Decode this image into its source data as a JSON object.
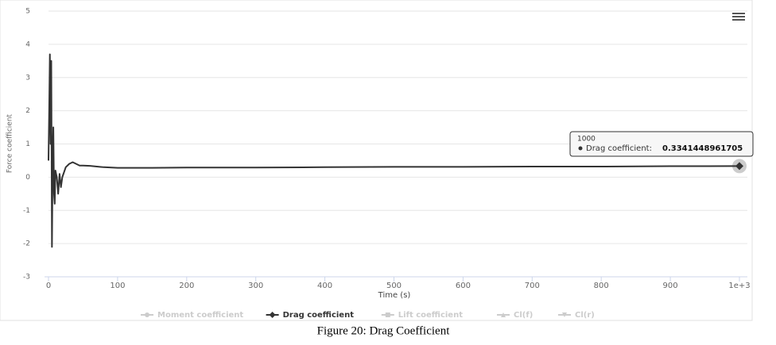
{
  "chart_data": {
    "type": "line",
    "x_label": "Time (s)",
    "y_label": "Force coefficient",
    "caption": "Figure 20: Drag Coefficient",
    "x": [
      0,
      1,
      2,
      3,
      4,
      5,
      6,
      7,
      8,
      9,
      10,
      12,
      14,
      16,
      18,
      20,
      25,
      30,
      35,
      40,
      45,
      50,
      60,
      80,
      100,
      150,
      200,
      300,
      400,
      500,
      600,
      700,
      800,
      900,
      1000
    ],
    "series": [
      {
        "name": "Moment coefficient",
        "visible": false,
        "symbol": "circle"
      },
      {
        "name": "Drag coefficient",
        "visible": true,
        "symbol": "diamond",
        "color": "#333333",
        "values": [
          0.5,
          2,
          3.7,
          1,
          3.5,
          -2.1,
          0.5,
          1.5,
          -0.5,
          -0.8,
          0.2,
          0,
          -0.5,
          0.1,
          -0.3,
          0,
          0.3,
          0.4,
          0.45,
          0.4,
          0.35,
          0.35,
          0.34,
          0.3,
          0.28,
          0.28,
          0.29,
          0.29,
          0.3,
          0.31,
          0.31,
          0.32,
          0.32,
          0.33,
          0.3341448961705
        ]
      },
      {
        "name": "Lift coefficient",
        "visible": false,
        "symbol": "square"
      },
      {
        "name": "Cl(f)",
        "visible": false,
        "symbol": "triangle"
      },
      {
        "name": "Cl(r)",
        "visible": false,
        "symbol": "triangle-down"
      }
    ],
    "tooltip_label": "Drag coefficient:",
    "xlim": [
      0,
      1000
    ],
    "xticks": [
      0,
      100,
      200,
      300,
      400,
      500,
      600,
      700,
      800,
      900,
      {
        "value": 1000,
        "label": "1e+3"
      }
    ],
    "ylim": [
      -3,
      5
    ],
    "yticks": [
      -3,
      -2,
      -1,
      0,
      1,
      2,
      3,
      4,
      5
    ],
    "grid": true
  }
}
